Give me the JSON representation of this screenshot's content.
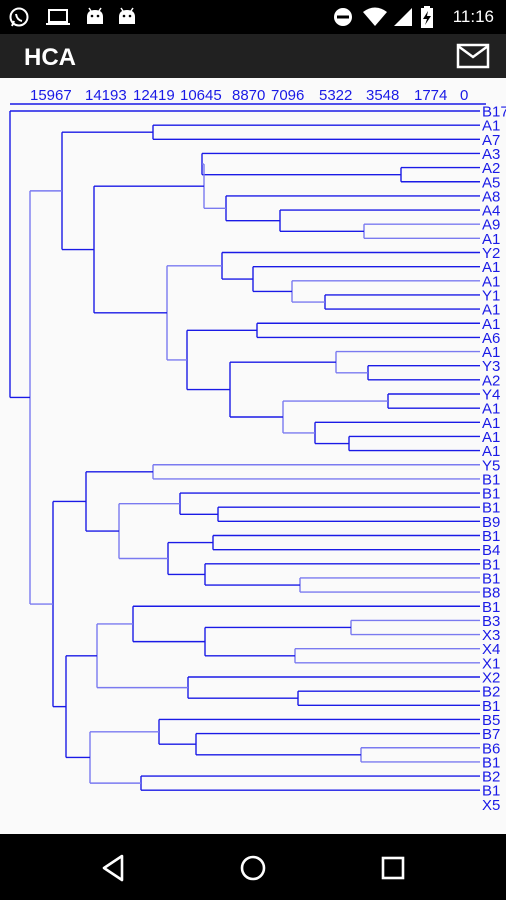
{
  "status_bar": {
    "time": "11:16",
    "left_icons": [
      "whatsapp-icon",
      "laptop-icon",
      "android-icon",
      "android-icon"
    ],
    "right_icons": [
      "do-not-disturb-icon",
      "wifi-icon",
      "cellular-signal-icon",
      "battery-charging-icon"
    ]
  },
  "app_bar": {
    "title": "HCA",
    "action_icon": "mail-icon"
  },
  "dendrogram": {
    "axis_ticks": [
      "15967",
      "14193",
      "12419",
      "10645",
      "8870",
      "7096",
      "5322",
      "3548",
      "1774",
      "0"
    ],
    "leaf_labels": [
      "B17",
      "A1",
      "A7",
      "A3",
      "A2",
      "A5",
      "A8",
      "A4",
      "A9",
      "A1",
      "Y2",
      "A1",
      "A1",
      "Y1",
      "A1",
      "A1",
      "A6",
      "A1",
      "Y3",
      "A2",
      "Y4",
      "A1",
      "A1",
      "A1",
      "A1",
      "Y5",
      "B1",
      "B1",
      "B1",
      "B9",
      "B1",
      "B4",
      "B1",
      "B1",
      "B8",
      "B1",
      "B3",
      "X3",
      "X4",
      "X1",
      "X2",
      "B2",
      "B1",
      "B5",
      "B7",
      "B6",
      "B1",
      "B2",
      "B1",
      "X5"
    ],
    "line_color_dark": "#1a1ae6",
    "line_color_light": "#7a7af0"
  },
  "nav_bar": {
    "back_icon": "back-triangle-icon",
    "home_icon": "home-circle-icon",
    "recents_icon": "recents-square-icon"
  }
}
